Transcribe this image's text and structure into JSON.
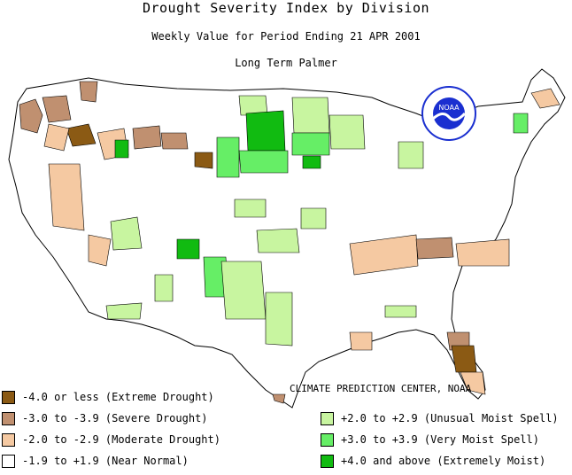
{
  "header": {
    "title": "Drought Severity Index by Division",
    "subtitle": "Weekly Value for Period Ending 21 APR 2001",
    "index_name": "Long Term Palmer"
  },
  "logo": {
    "text": "NOAA"
  },
  "credit": "CLIMATE PREDICTION CENTER, NOAA",
  "legend": {
    "left": [
      {
        "label": "-4.0 or less (Extreme Drought)",
        "color": "#8b5a14"
      },
      {
        "label": "-3.0 to -3.9 (Severe Drought)",
        "color": "#c09070"
      },
      {
        "label": "-2.0 to -2.9 (Moderate Drought)",
        "color": "#f5c9a2"
      },
      {
        "label": "-1.9 to +1.9 (Near Normal)",
        "color": "#ffffff"
      }
    ],
    "right": [
      {
        "label": "+2.0 to +2.9 (Unusual Moist Spell)",
        "color": "#c8f5a0"
      },
      {
        "label": "+3.0 to +3.9 (Very Moist Spell)",
        "color": "#66ee66"
      },
      {
        "label": "+4.0 and above (Extremely Moist)",
        "color": "#11bb11"
      }
    ]
  },
  "colors": {
    "extreme_drought": "#8b5a14",
    "severe_drought": "#c09070",
    "moderate_drought": "#f5c9a2",
    "near_normal": "#ffffff",
    "unusual_moist": "#c8f5a0",
    "very_moist": "#66ee66",
    "extremely_moist": "#11bb11",
    "logo_blue": "#1a2fd0"
  }
}
